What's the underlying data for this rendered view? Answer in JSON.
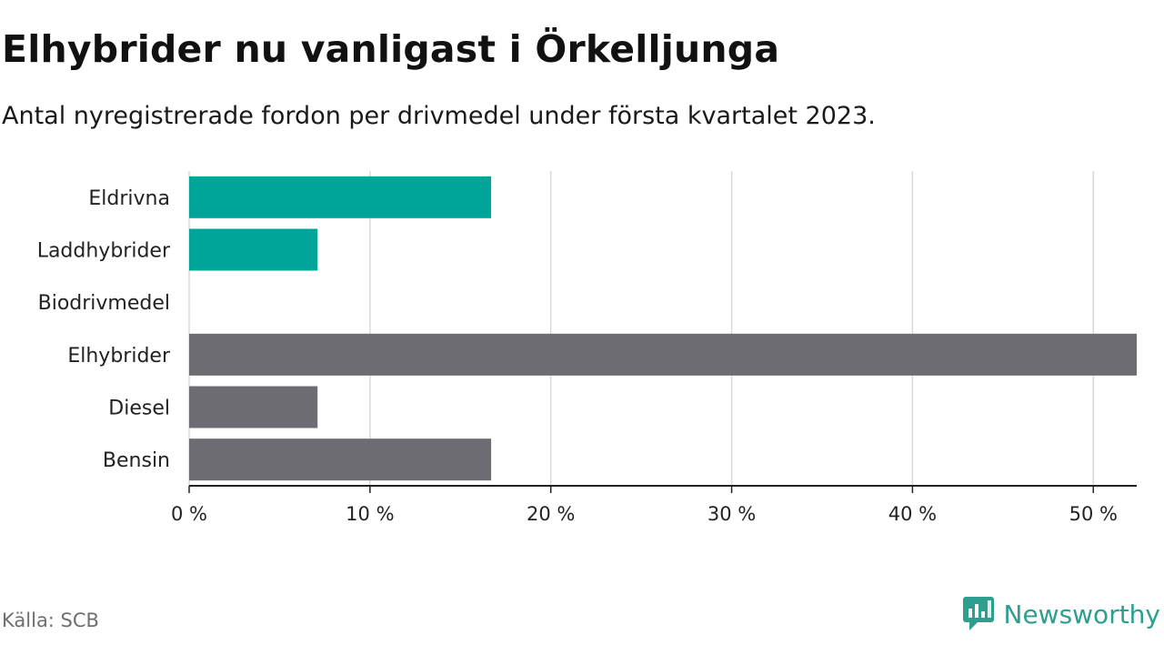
{
  "title": "Elhybrider nu vanligast i Örkelljunga",
  "subtitle": "Antal nyregistrerade fordon per drivmedel under första kvartalet 2023.",
  "source": "Källa: SCB",
  "brand": "Newsworthy",
  "icon": "newsworthy-logo-icon",
  "colors": {
    "teal": "#00a59a",
    "gray": "#6d6c72",
    "grid": "#d9d9d9",
    "axis": "#222222",
    "brand": "#2e9e8f"
  },
  "chart_data": {
    "type": "bar",
    "orientation": "horizontal",
    "categories": [
      "Eldrivna",
      "Laddhybrider",
      "Biodrivmedel",
      "Elhybrider",
      "Diesel",
      "Bensin"
    ],
    "values": [
      16.7,
      7.1,
      0,
      52.4,
      7.1,
      16.7
    ],
    "bar_colors": [
      "teal",
      "teal",
      "gray",
      "gray",
      "gray",
      "gray"
    ],
    "unit": "%",
    "xlim": [
      0,
      52.4
    ],
    "ticks": [
      0,
      10,
      20,
      30,
      40,
      50
    ],
    "tick_labels": [
      "0 %",
      "10 %",
      "20 %",
      "30 %",
      "40 %",
      "50 %"
    ],
    "grid": "vertical",
    "legend": "none"
  }
}
